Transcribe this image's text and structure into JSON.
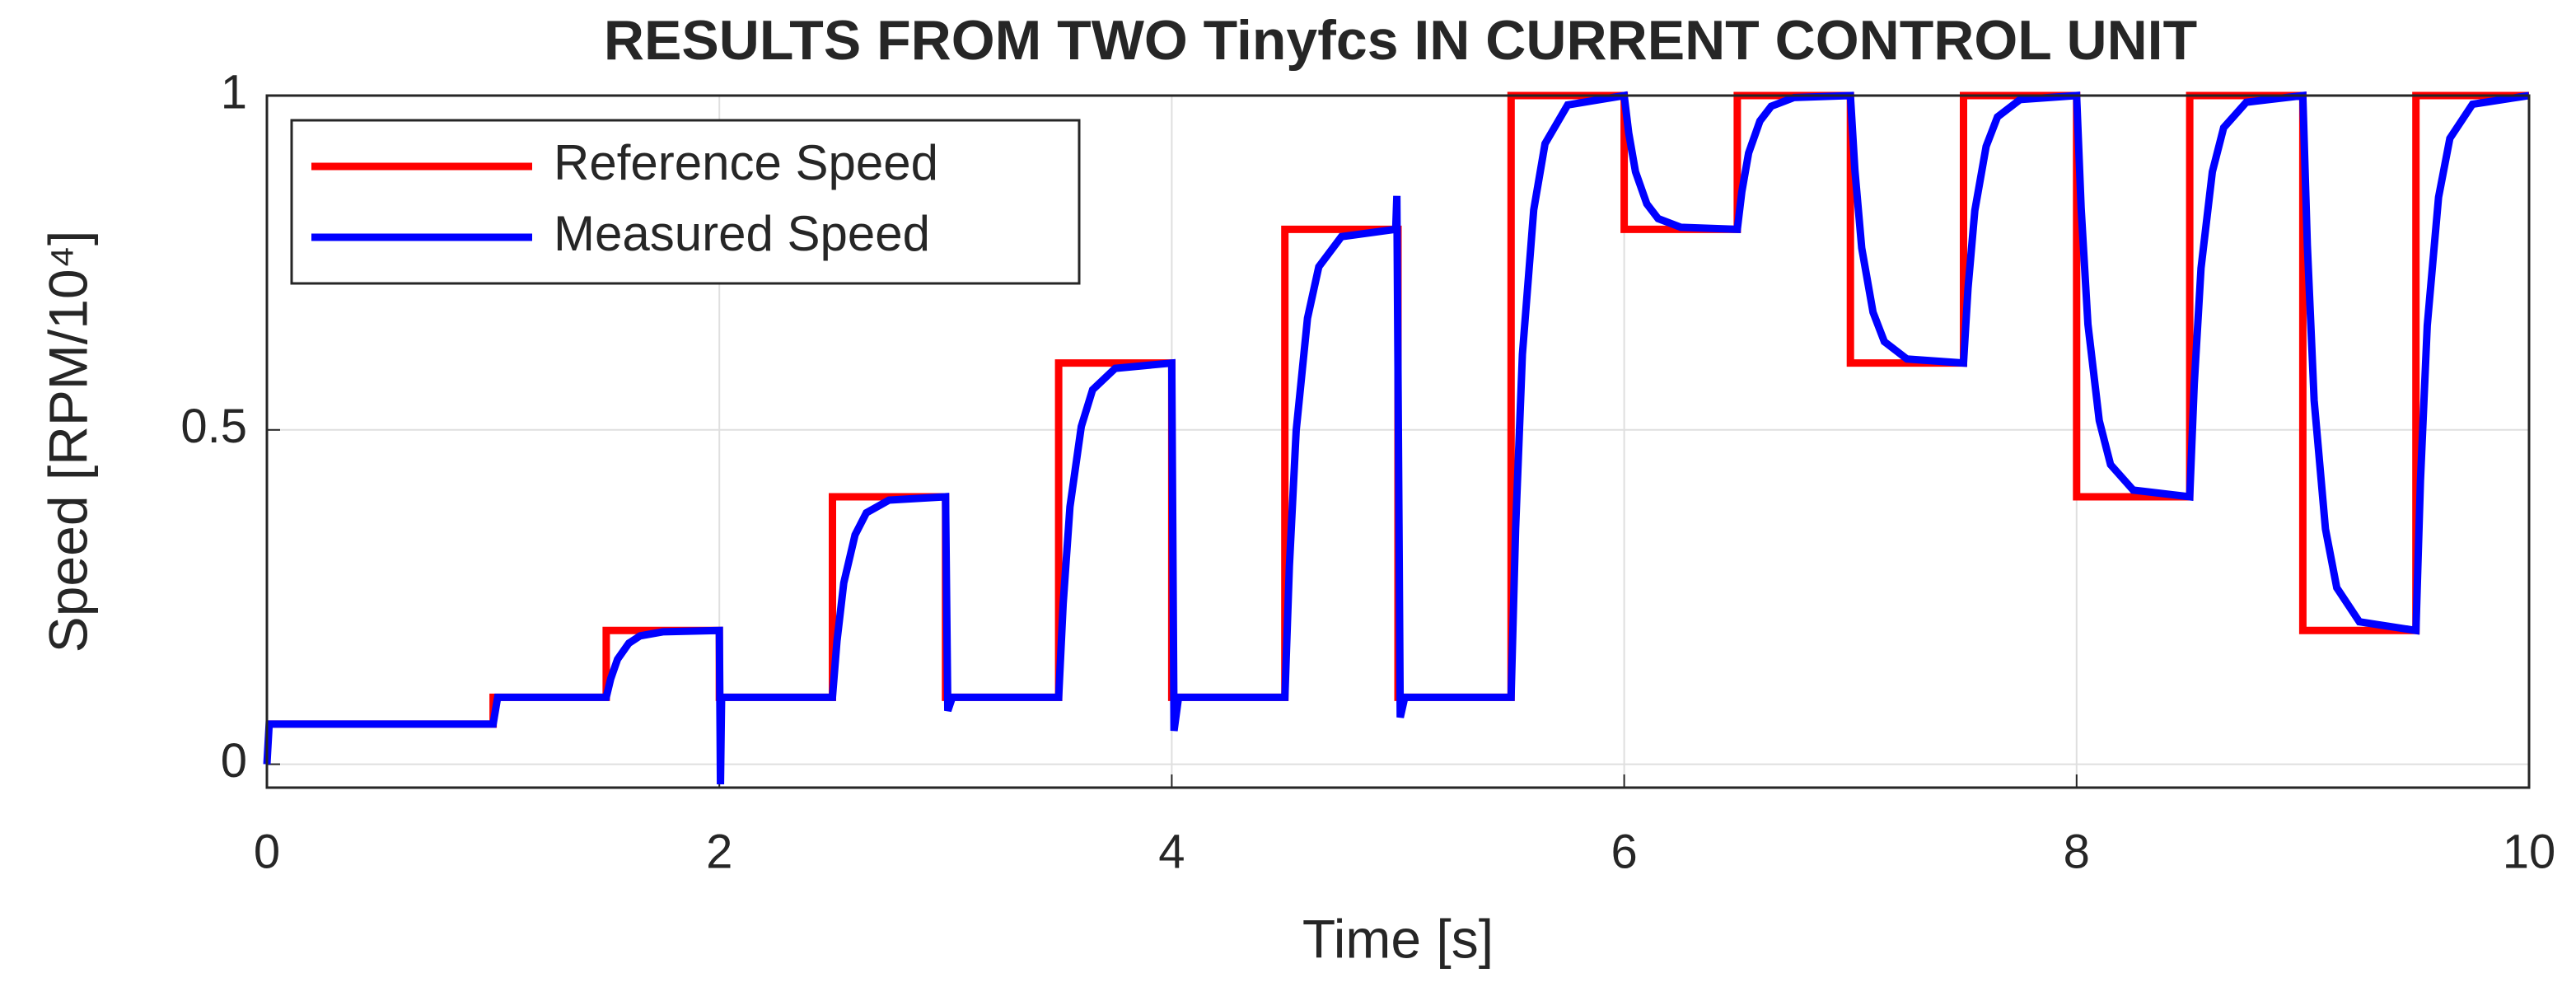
{
  "chart_data": {
    "type": "line",
    "title": "RESULTS FROM TWO Tinyfcs IN CURRENT CONTROL UNIT",
    "xlabel": "Time [s]",
    "ylabel": "Speed  [RPM/10⁴]",
    "xlim": [
      0,
      10
    ],
    "xticks": [
      0,
      2,
      4,
      6,
      8,
      10
    ],
    "ylim": [
      -0.035,
      1
    ],
    "yticks": [
      0,
      0.5,
      1
    ],
    "grid": true,
    "legend": "upper left",
    "series": [
      {
        "name": "Reference Speed",
        "color": "#ff0000",
        "x": [
          0,
          1,
          1,
          1.5,
          1.5,
          2,
          2,
          2.5,
          2.5,
          3,
          3,
          3.5,
          3.5,
          4,
          4,
          4.5,
          4.5,
          5,
          5,
          5.5,
          5.5,
          6,
          6,
          6.5,
          6.5,
          7,
          7,
          7.5,
          7.5,
          8,
          8,
          8.5,
          8.5,
          9,
          9,
          9.5,
          9.5,
          10
        ],
        "values": [
          0.06,
          0.06,
          0.1,
          0.1,
          0.2,
          0.2,
          0.1,
          0.1,
          0.4,
          0.4,
          0.1,
          0.1,
          0.6,
          0.6,
          0.1,
          0.1,
          0.8,
          0.8,
          0.1,
          0.1,
          1,
          1,
          0.8,
          0.8,
          1,
          1,
          0.6,
          0.6,
          1,
          1,
          0.4,
          0.4,
          1,
          1,
          0.2,
          0.2,
          1,
          1
        ]
      },
      {
        "name": "Measured Speed",
        "color": "#0000ff",
        "x": [
          0,
          0.01,
          1,
          1.02,
          1.5,
          1.52,
          1.55,
          1.6,
          1.65,
          1.75,
          2,
          2.005,
          2.01,
          2.5,
          2.52,
          2.55,
          2.6,
          2.65,
          2.75,
          3,
          3.01,
          3.03,
          3.5,
          3.52,
          3.55,
          3.6,
          3.65,
          3.75,
          4,
          4.01,
          4.03,
          4.5,
          4.52,
          4.55,
          4.6,
          4.65,
          4.75,
          4.99,
          4.995,
          5.01,
          5.03,
          5.5,
          5.52,
          5.55,
          5.6,
          5.65,
          5.75,
          6,
          6.02,
          6.05,
          6.1,
          6.15,
          6.25,
          6.5,
          6.52,
          6.55,
          6.6,
          6.65,
          6.75,
          7,
          7.02,
          7.05,
          7.1,
          7.15,
          7.25,
          7.5,
          7.52,
          7.55,
          7.6,
          7.65,
          7.75,
          8,
          8.02,
          8.05,
          8.1,
          8.15,
          8.25,
          8.5,
          8.52,
          8.55,
          8.6,
          8.65,
          8.75,
          9,
          9.02,
          9.05,
          9.1,
          9.15,
          9.25,
          9.5,
          9.52,
          9.55,
          9.6,
          9.65,
          9.75,
          10
        ],
        "values": [
          0,
          0.06,
          0.06,
          0.1,
          0.1,
          0.128,
          0.157,
          0.181,
          0.192,
          0.198,
          0.2,
          -0.03,
          0.1,
          0.1,
          0.184,
          0.271,
          0.343,
          0.376,
          0.395,
          0.4,
          0.08,
          0.1,
          0.1,
          0.24,
          0.385,
          0.505,
          0.56,
          0.592,
          0.6,
          0.05,
          0.1,
          0.1,
          0.296,
          0.499,
          0.667,
          0.744,
          0.789,
          0.8,
          0.85,
          0.07,
          0.1,
          0.1,
          0.352,
          0.613,
          0.829,
          0.928,
          0.986,
          1,
          0.944,
          0.886,
          0.838,
          0.816,
          0.803,
          0.8,
          0.856,
          0.914,
          0.962,
          0.984,
          0.997,
          1,
          0.888,
          0.772,
          0.676,
          0.632,
          0.606,
          0.6,
          0.712,
          0.828,
          0.924,
          0.968,
          0.994,
          1,
          0.832,
          0.658,
          0.514,
          0.448,
          0.41,
          0.4,
          0.568,
          0.742,
          0.886,
          0.952,
          0.99,
          1,
          0.776,
          0.544,
          0.352,
          0.264,
          0.213,
          0.2,
          0.424,
          0.656,
          0.848,
          0.936,
          0.987,
          1
        ]
      }
    ]
  }
}
